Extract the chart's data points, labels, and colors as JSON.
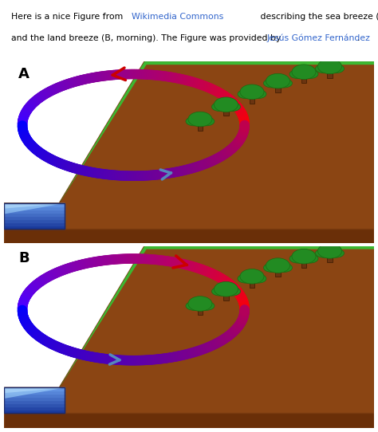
{
  "bg_color": "#ffffff",
  "panel_A_label": "A",
  "panel_B_label": "B",
  "land_color": "#8B4513",
  "land_edge_color": "#7a3b0f",
  "water_dark": "#1a3a9c",
  "water_mid": "#3a6acc",
  "water_light": "#88ccff",
  "grass_color": "#3cb832",
  "grass_edge": "#2a9a22",
  "tree_trunk_color": "#6B3410",
  "tree_foliage_color": "#228B22",
  "tree_foliage_edge": "#1a6b12",
  "arrow_red": "#cc0000",
  "arrow_blue": "#5588bb",
  "header_line1": "Here is a nice Figure from ",
  "header_link1": "Wikimedia Commons",
  "header_mid1": " describing the sea breeze (A, evening/afternoon)",
  "header_line2": "and the land breeze (B, morning). The Figure was provided by ",
  "header_link2": "Jesús Gómez Fernández",
  "header_end": ".",
  "link_color": "#3366cc"
}
